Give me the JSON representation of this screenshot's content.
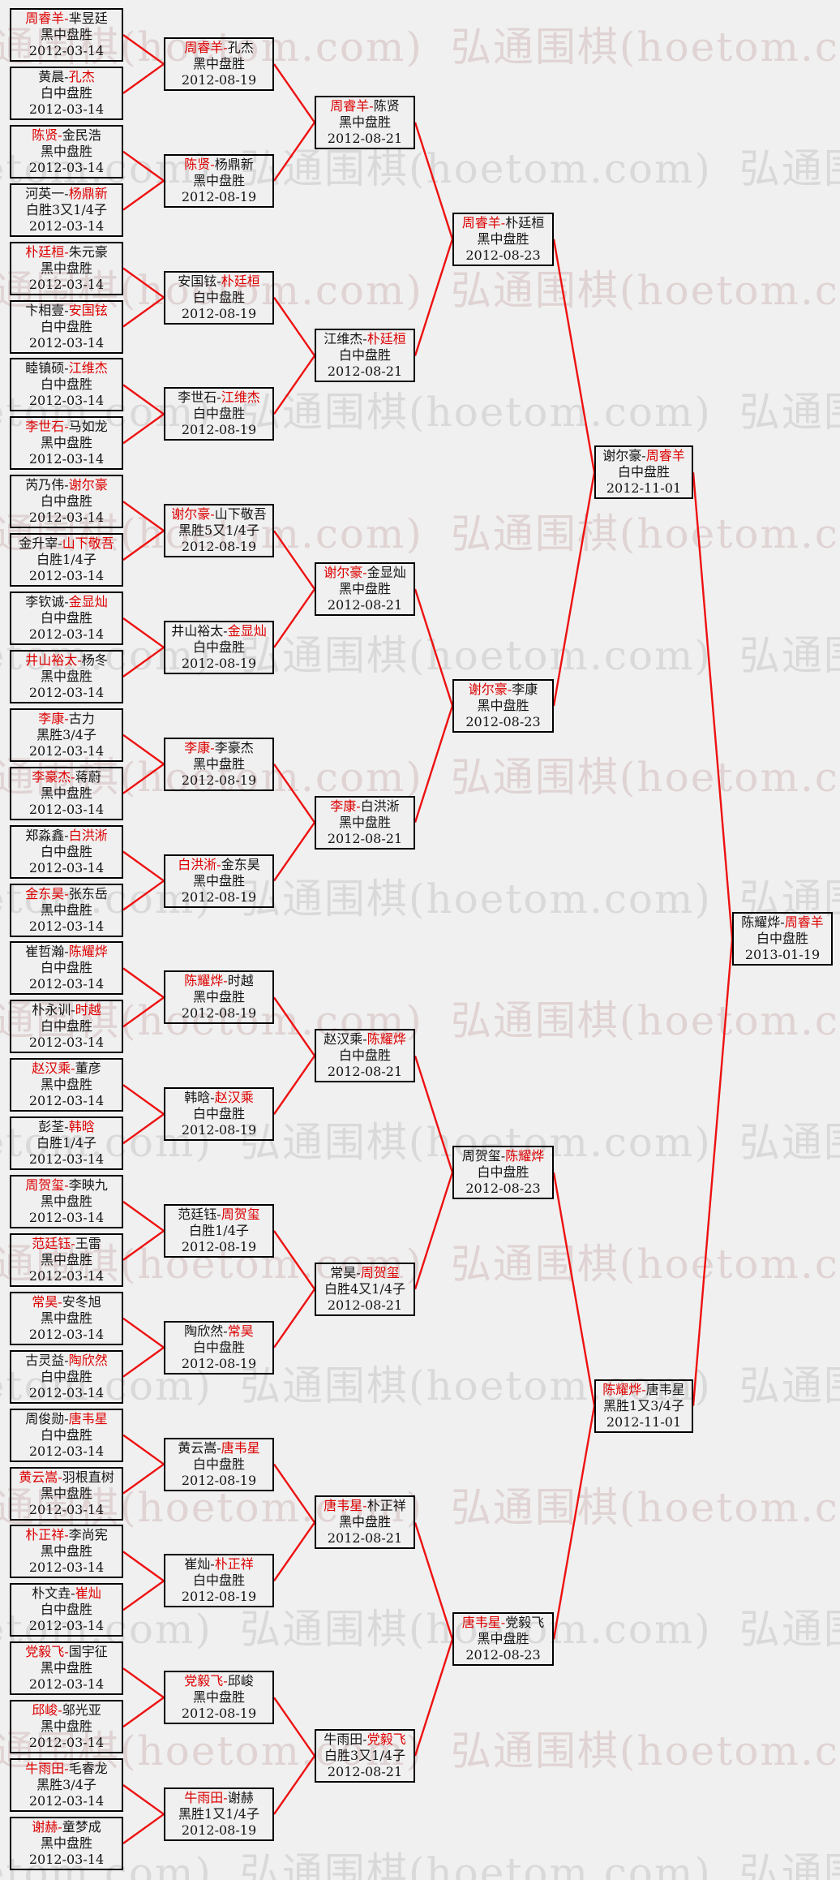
{
  "watermark": {
    "text": "弘通围棋(hoetom.com)"
  },
  "colors": {
    "background": "#f0f0f0",
    "box_border": "#000000",
    "text": "#141414",
    "winner_red": "#dd0000",
    "connector_red": "#ee1111",
    "watermark_red": "#c9a8a8",
    "watermark_gray": "#b2b2b2"
  },
  "bracket": {
    "dash": "-",
    "rounds": [
      {
        "name": "round-of-64",
        "date": "2012-03-14",
        "matches": [
          {
            "p1": "周睿羊",
            "p2": "芈昱廷",
            "winner": 1,
            "result": "黑中盘胜"
          },
          {
            "p1": "黄晨",
            "p2": "孔杰",
            "winner": 2,
            "result": "白中盘胜"
          },
          {
            "p1": "陈贤",
            "p2": "金民浩",
            "winner": 1,
            "result": "黑中盘胜"
          },
          {
            "p1": "河英一",
            "p2": "杨鼎新",
            "winner": 2,
            "result": "白胜3又1/4子"
          },
          {
            "p1": "朴廷桓",
            "p2": "朱元豪",
            "winner": 1,
            "result": "黑中盘胜"
          },
          {
            "p1": "卞相壹",
            "p2": "安国铉",
            "winner": 2,
            "result": "白中盘胜"
          },
          {
            "p1": "睦镇硕",
            "p2": "江维杰",
            "winner": 2,
            "result": "白中盘胜"
          },
          {
            "p1": "李世石",
            "p2": "马如龙",
            "winner": 1,
            "result": "黑中盘胜"
          },
          {
            "p1": "芮乃伟",
            "p2": "谢尔豪",
            "winner": 2,
            "result": "白中盘胜"
          },
          {
            "p1": "金升宰",
            "p2": "山下敬吾",
            "winner": 2,
            "result": "白胜1/4子"
          },
          {
            "p1": "李钦诚",
            "p2": "金显灿",
            "winner": 2,
            "result": "白中盘胜"
          },
          {
            "p1": "井山裕太",
            "p2": "杨冬",
            "winner": 1,
            "result": "黑中盘胜"
          },
          {
            "p1": "李康",
            "p2": "古力",
            "winner": 1,
            "result": "黑胜3/4子"
          },
          {
            "p1": "李豪杰",
            "p2": "蒋蔚",
            "winner": 1,
            "result": "黑中盘胜"
          },
          {
            "p1": "郑淼鑫",
            "p2": "白洪淅",
            "winner": 2,
            "result": "白中盘胜"
          },
          {
            "p1": "金东昊",
            "p2": "张东岳",
            "winner": 1,
            "result": "黑中盘胜"
          },
          {
            "p1": "崔哲瀚",
            "p2": "陈耀烨",
            "winner": 2,
            "result": "白中盘胜"
          },
          {
            "p1": "朴永训",
            "p2": "时越",
            "winner": 2,
            "result": "白中盘胜"
          },
          {
            "p1": "赵汉乘",
            "p2": "董彦",
            "winner": 1,
            "result": "黑中盘胜"
          },
          {
            "p1": "彭荃",
            "p2": "韩晗",
            "winner": 2,
            "result": "白胜1/4子"
          },
          {
            "p1": "周贺玺",
            "p2": "李映九",
            "winner": 1,
            "result": "黑中盘胜"
          },
          {
            "p1": "范廷钰",
            "p2": "王雷",
            "winner": 1,
            "result": "黑中盘胜"
          },
          {
            "p1": "常昊",
            "p2": "安冬旭",
            "winner": 1,
            "result": "黑中盘胜"
          },
          {
            "p1": "古灵益",
            "p2": "陶欣然",
            "winner": 2,
            "result": "白中盘胜"
          },
          {
            "p1": "周俊勋",
            "p2": "唐韦星",
            "winner": 2,
            "result": "白中盘胜"
          },
          {
            "p1": "黄云嵩",
            "p2": "羽根直树",
            "winner": 1,
            "result": "黑中盘胜"
          },
          {
            "p1": "朴正祥",
            "p2": "李尚宪",
            "winner": 1,
            "result": "黑中盘胜"
          },
          {
            "p1": "朴文垚",
            "p2": "崔灿",
            "winner": 2,
            "result": "白中盘胜"
          },
          {
            "p1": "党毅飞",
            "p2": "国宇征",
            "winner": 1,
            "result": "黑中盘胜"
          },
          {
            "p1": "邱峻",
            "p2": "邬光亚",
            "winner": 1,
            "result": "黑中盘胜"
          },
          {
            "p1": "牛雨田",
            "p2": "毛睿龙",
            "winner": 1,
            "result": "黑胜3/4子"
          },
          {
            "p1": "谢赫",
            "p2": "童梦成",
            "winner": 1,
            "result": "黑中盘胜"
          }
        ]
      },
      {
        "name": "round-of-32",
        "date": "2012-08-19",
        "matches": [
          {
            "p1": "周睿羊",
            "p2": "孔杰",
            "winner": 1,
            "result": "黑中盘胜"
          },
          {
            "p1": "陈贤",
            "p2": "杨鼎新",
            "winner": 1,
            "result": "黑中盘胜"
          },
          {
            "p1": "安国铉",
            "p2": "朴廷桓",
            "winner": 2,
            "result": "白中盘胜"
          },
          {
            "p1": "李世石",
            "p2": "江维杰",
            "winner": 2,
            "result": "白中盘胜"
          },
          {
            "p1": "谢尔豪",
            "p2": "山下敬吾",
            "winner": 1,
            "result": "黑胜5又1/4子"
          },
          {
            "p1": "井山裕太",
            "p2": "金显灿",
            "winner": 2,
            "result": "白中盘胜"
          },
          {
            "p1": "李康",
            "p2": "李豪杰",
            "winner": 1,
            "result": "黑中盘胜"
          },
          {
            "p1": "白洪淅",
            "p2": "金东昊",
            "winner": 1,
            "result": "黑中盘胜"
          },
          {
            "p1": "陈耀烨",
            "p2": "时越",
            "winner": 1,
            "result": "黑中盘胜"
          },
          {
            "p1": "韩晗",
            "p2": "赵汉乘",
            "winner": 2,
            "result": "白中盘胜"
          },
          {
            "p1": "范廷钰",
            "p2": "周贺玺",
            "winner": 2,
            "result": "白胜1/4子"
          },
          {
            "p1": "陶欣然",
            "p2": "常昊",
            "winner": 2,
            "result": "白中盘胜"
          },
          {
            "p1": "黄云嵩",
            "p2": "唐韦星",
            "winner": 2,
            "result": "白中盘胜"
          },
          {
            "p1": "崔灿",
            "p2": "朴正祥",
            "winner": 2,
            "result": "白中盘胜"
          },
          {
            "p1": "党毅飞",
            "p2": "邱峻",
            "winner": 1,
            "result": "黑中盘胜"
          },
          {
            "p1": "牛雨田",
            "p2": "谢赫",
            "winner": 1,
            "result": "黑胜1又1/4子"
          }
        ]
      },
      {
        "name": "round-of-16",
        "date": "2012-08-21",
        "matches": [
          {
            "p1": "周睿羊",
            "p2": "陈贤",
            "winner": 1,
            "result": "黑中盘胜"
          },
          {
            "p1": "江维杰",
            "p2": "朴廷桓",
            "winner": 2,
            "result": "白中盘胜"
          },
          {
            "p1": "谢尔豪",
            "p2": "金显灿",
            "winner": 1,
            "result": "黑中盘胜"
          },
          {
            "p1": "李康",
            "p2": "白洪淅",
            "winner": 1,
            "result": "黑中盘胜"
          },
          {
            "p1": "赵汉乘",
            "p2": "陈耀烨",
            "winner": 2,
            "result": "白中盘胜"
          },
          {
            "p1": "常昊",
            "p2": "周贺玺",
            "winner": 2,
            "result": "白胜4又1/4子"
          },
          {
            "p1": "唐韦星",
            "p2": "朴正祥",
            "winner": 1,
            "result": "黑中盘胜"
          },
          {
            "p1": "牛雨田",
            "p2": "党毅飞",
            "winner": 2,
            "result": "白胜3又1/4子"
          }
        ]
      },
      {
        "name": "quarterfinals",
        "date": "2012-08-23",
        "matches": [
          {
            "p1": "周睿羊",
            "p2": "朴廷桓",
            "winner": 1,
            "result": "黑中盘胜"
          },
          {
            "p1": "谢尔豪",
            "p2": "李康",
            "winner": 1,
            "result": "黑中盘胜"
          },
          {
            "p1": "周贺玺",
            "p2": "陈耀烨",
            "winner": 2,
            "result": "白中盘胜"
          },
          {
            "p1": "唐韦星",
            "p2": "党毅飞",
            "winner": 1,
            "result": "黑中盘胜"
          }
        ]
      },
      {
        "name": "semifinals",
        "date": "2012-11-01",
        "matches": [
          {
            "p1": "谢尔豪",
            "p2": "周睿羊",
            "winner": 2,
            "result": "白中盘胜"
          },
          {
            "p1": "陈耀烨",
            "p2": "唐韦星",
            "winner": 1,
            "result": "黑胜1又3/4子"
          }
        ]
      },
      {
        "name": "final",
        "date": "2013-01-19",
        "matches": [
          {
            "p1": "陈耀烨",
            "p2": "周睿羊",
            "winner": 2,
            "result": "白中盘胜"
          }
        ]
      }
    ]
  }
}
